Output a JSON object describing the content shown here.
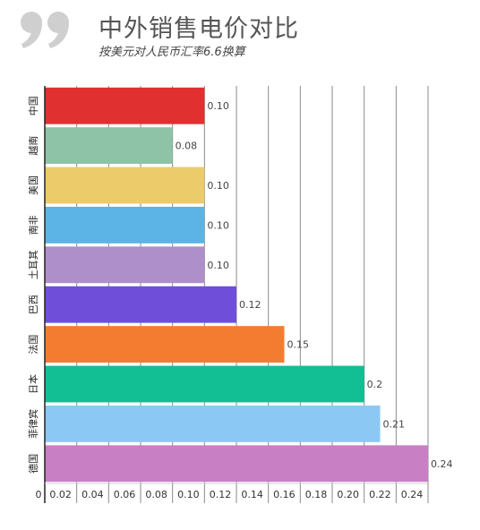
{
  "header": {
    "title": "中外销售电价对比",
    "subtitle": "按美元对人民币汇率6.6换算"
  },
  "chart_data": {
    "type": "bar",
    "orientation": "horizontal",
    "title": "中外销售电价对比",
    "subtitle": "按美元对人民币汇率6.6换算",
    "categories": [
      "中国",
      "越南",
      "美国",
      "南非",
      "土耳其",
      "巴西",
      "法国",
      "日本",
      "菲律宾",
      "德国"
    ],
    "values": [
      0.1,
      0.08,
      0.1,
      0.1,
      0.1,
      0.12,
      0.15,
      0.2,
      0.21,
      0.24
    ],
    "value_labels": [
      "0.10",
      "0.08",
      "0.10",
      "0.10",
      "0.10",
      "0.12",
      "0.15",
      "0.2",
      "0.21",
      "0.24"
    ],
    "colors": [
      "#e03030",
      "#8fc3a8",
      "#eccb6b",
      "#5cb3e6",
      "#ae8fc9",
      "#6f4fd9",
      "#f47c30",
      "#12bf95",
      "#8cc8f4",
      "#c97fc4"
    ],
    "xlim": [
      0,
      0.24
    ],
    "xticks": [
      "0",
      "0.02",
      "0.04",
      "0.06",
      "0.08",
      "0.10",
      "0.12",
      "0.14",
      "0.16",
      "0.18",
      "0.20",
      "0.22",
      "0.24"
    ],
    "xlabel": "",
    "ylabel": "",
    "grid": true,
    "legend": "none"
  }
}
